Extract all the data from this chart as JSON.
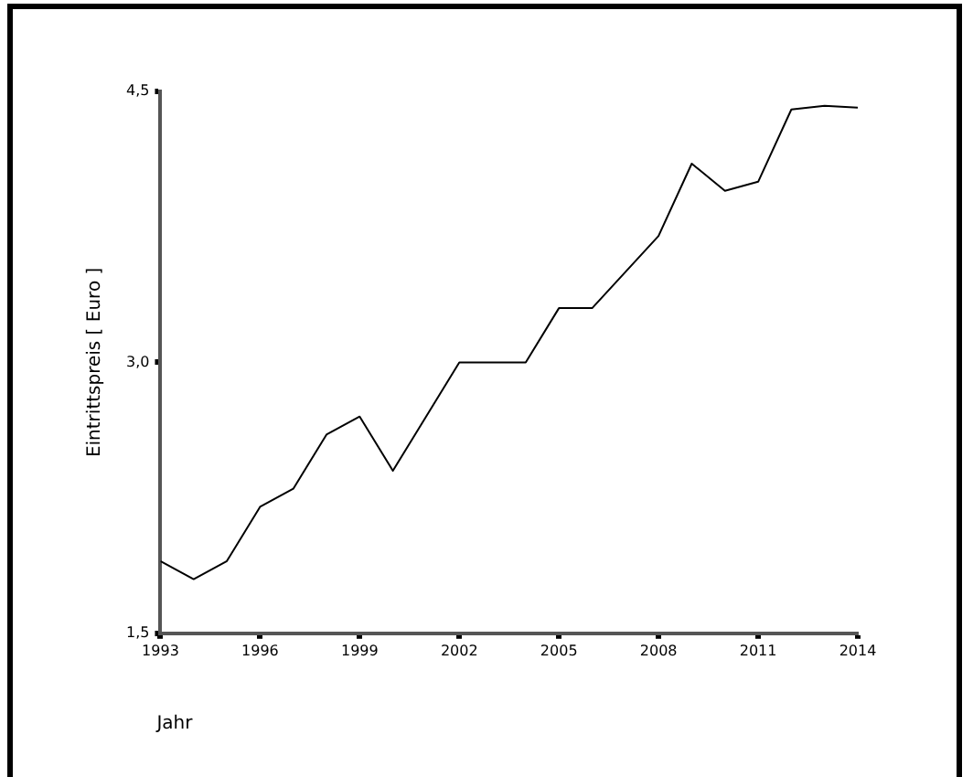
{
  "chart_data": {
    "type": "line",
    "xlabel": "Jahr",
    "ylabel": "Eintrittspreis [ Euro ]",
    "x": [
      1993,
      1994,
      1995,
      1996,
      1997,
      1998,
      1999,
      2000,
      2001,
      2002,
      2003,
      2004,
      2005,
      2006,
      2007,
      2008,
      2009,
      2010,
      2011,
      2012,
      2013,
      2014
    ],
    "values": [
      1.9,
      1.8,
      1.9,
      2.2,
      2.3,
      2.6,
      2.7,
      2.4,
      2.7,
      3.0,
      3.0,
      3.0,
      3.3,
      3.3,
      3.5,
      3.7,
      4.1,
      3.95,
      4.0,
      4.4,
      4.42,
      4.41
    ],
    "color": "#000000",
    "xlim": [
      1993,
      2014
    ],
    "xticks": [
      1993,
      1996,
      1999,
      2002,
      2005,
      2008,
      2011,
      2014
    ],
    "ylim": [
      1.5,
      4.5
    ],
    "yticks": [
      {
        "value": 1.5,
        "label": "1,5"
      },
      {
        "value": 3.0,
        "label": "3,0"
      },
      {
        "value": 4.5,
        "label": "4,5"
      }
    ],
    "grid": false,
    "legend": false,
    "marker": "none",
    "line_style": "solid"
  }
}
